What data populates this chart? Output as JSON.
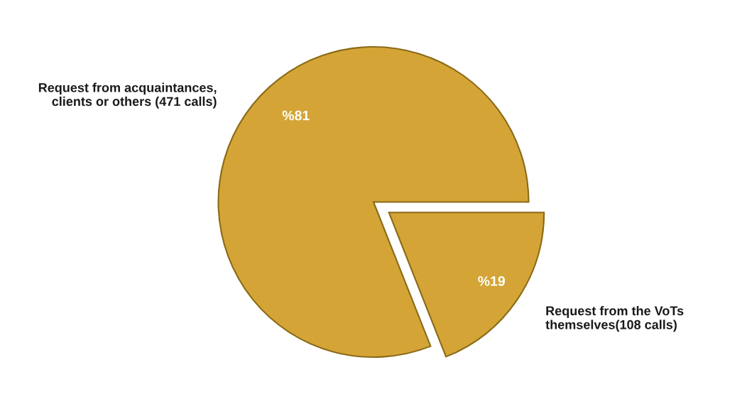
{
  "chart_data": {
    "type": "pie",
    "categories": [
      "Request from acquaintances,\nclients or others (471 calls)",
      "Request from the VoTs\nthemselves(108 calls)"
    ],
    "values": [
      81,
      19
    ],
    "colors": [
      "#d4a536",
      "#d4a536"
    ],
    "value_labels": [
      "%81",
      "%19"
    ],
    "legend": false
  }
}
